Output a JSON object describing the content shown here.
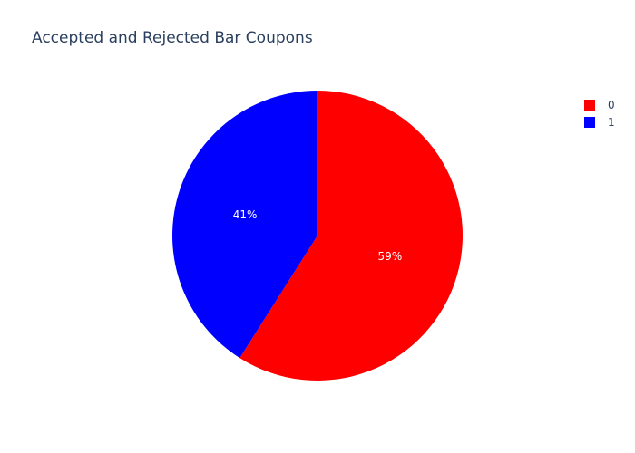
{
  "chart_data": {
    "type": "pie",
    "title": "Accepted and Rejected Bar Coupons",
    "labels": [
      "0",
      "1"
    ],
    "values": [
      59,
      41
    ],
    "display_percent": [
      "59%",
      "41%"
    ],
    "colors": [
      "#ff0000",
      "#0000ff"
    ],
    "legend_position": "top-right",
    "direction": "clockwise",
    "start": "top"
  }
}
